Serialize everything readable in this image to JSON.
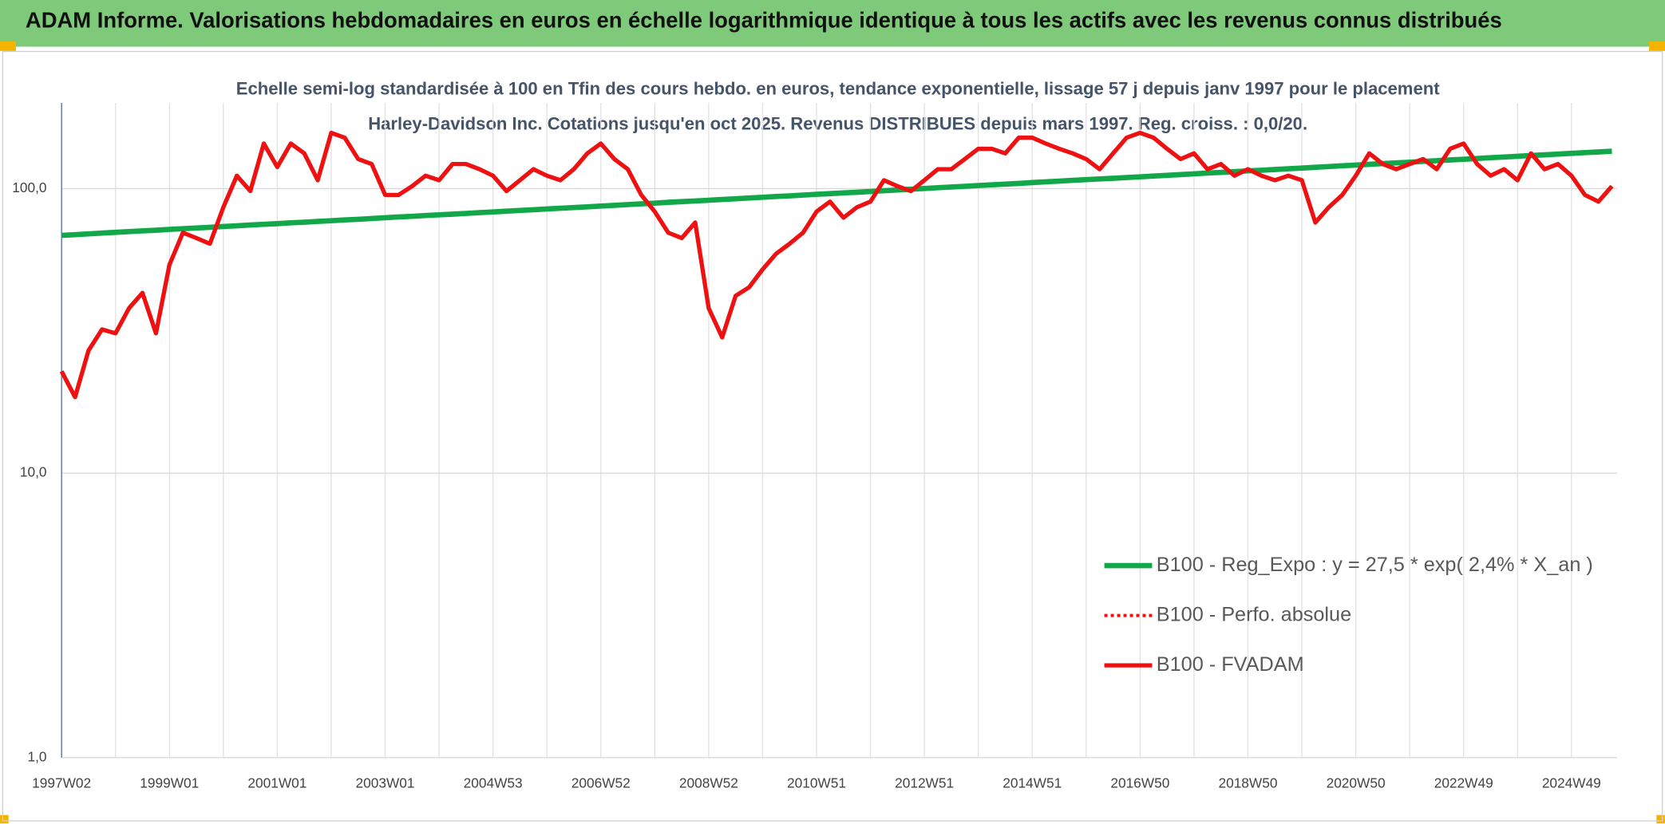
{
  "chart_data": {
    "type": "line",
    "title": "ADAM Informe. Valorisations hebdomadaires en euros en échelle logarithmique identique à tous les actifs avec les revenus connus distribués",
    "subtitle": "Echelle semi-log standardisée à 100 en Tfin des cours hebdo. en euros, tendance exponentielle, lissage 57 j depuis janv 1997 pour le placement Harley-Davidson Inc. Cotations jusqu'en oct 2025. Revenus DISTRIBUES depuis mars 1997. Reg. croiss. : 0,0/20.",
    "log_scale": true,
    "grid": true,
    "legend": "lower right",
    "ylim": [
      1,
      200
    ],
    "yticks": [
      {
        "value": 1,
        "label": "1,0"
      },
      {
        "value": 10,
        "label": "10,0"
      },
      {
        "value": 100,
        "label": "100,0"
      }
    ],
    "categories": [
      "1997W02",
      null,
      null,
      null,
      null,
      null,
      null,
      null,
      "1999W01",
      null,
      null,
      null,
      null,
      null,
      null,
      null,
      "2001W01",
      null,
      null,
      null,
      null,
      null,
      null,
      null,
      "2003W01",
      null,
      null,
      null,
      null,
      null,
      null,
      null,
      "2004W53",
      null,
      null,
      null,
      null,
      null,
      null,
      null,
      "2006W52",
      null,
      null,
      null,
      null,
      null,
      null,
      null,
      "2008W52",
      null,
      null,
      null,
      null,
      null,
      null,
      null,
      "2010W51",
      null,
      null,
      null,
      null,
      null,
      null,
      null,
      "2012W51",
      null,
      null,
      null,
      null,
      null,
      null,
      null,
      "2014W51",
      null,
      null,
      null,
      null,
      null,
      null,
      null,
      "2016W50",
      null,
      null,
      null,
      null,
      null,
      null,
      null,
      "2018W50",
      null,
      null,
      null,
      null,
      null,
      null,
      null,
      "2020W50",
      null,
      null,
      null,
      null,
      null,
      null,
      null,
      "2022W49",
      null,
      null,
      null,
      null,
      null,
      null,
      null,
      "2024W49",
      null,
      null,
      null
    ],
    "series": [
      {
        "name": "B100 - Reg_Expo : y = 27,5 * exp( 2,4% *  X_an )",
        "color": "#12a84a",
        "style": "solid",
        "width": 5,
        "values": [
          68.5,
          68.9,
          69.3,
          69.8,
          70.2,
          70.6,
          71.0,
          71.4,
          71.9,
          72.3,
          72.7,
          73.1,
          73.6,
          74.0,
          74.5,
          74.9,
          75.3,
          75.8,
          76.2,
          76.7,
          77.1,
          77.6,
          78.0,
          78.5,
          79.0,
          79.5,
          79.9,
          80.4,
          80.9,
          81.3,
          81.8,
          82.3,
          82.8,
          83.3,
          83.8,
          84.3,
          84.8,
          85.3,
          85.8,
          86.3,
          86.8,
          87.3,
          87.9,
          88.4,
          88.9,
          89.5,
          90.0,
          90.5,
          91.0,
          91.6,
          92.1,
          92.7,
          93.2,
          93.8,
          94.3,
          94.9,
          95.5,
          96.0,
          96.6,
          97.1,
          97.7,
          98.3,
          98.9,
          99.5,
          100.1,
          100.7,
          101.3,
          101.9,
          102.5,
          103.1,
          103.7,
          104.3,
          105.0,
          105.6,
          106.2,
          106.9,
          107.5,
          108.1,
          108.7,
          109.4,
          110.0,
          110.7,
          111.3,
          112.0,
          112.7,
          113.4,
          114.0,
          114.7,
          115.4,
          116.0,
          116.7,
          117.4,
          118.1,
          118.8,
          119.5,
          120.3,
          121.0,
          121.7,
          122.4,
          123.1,
          123.8,
          124.6,
          125.3,
          126.1,
          126.8,
          127.6,
          128.4,
          129.1,
          129.9,
          130.7,
          131.4,
          132.2,
          133.0,
          133.8,
          134.5,
          135.3
        ]
      },
      {
        "name": "B100 - Perfo. absolue",
        "color": "#ee1111",
        "style": "dotted",
        "width": 3
      },
      {
        "name": "B100 - FVADAM",
        "color": "#ee1111",
        "style": "solid",
        "width": 4,
        "values": [
          22.8,
          18.5,
          27,
          32,
          31,
          38,
          43,
          31,
          54,
          70,
          67,
          64,
          86,
          111,
          98,
          144,
          119,
          144,
          133,
          107,
          157,
          151,
          127,
          122,
          95,
          95,
          102,
          111,
          107,
          122,
          122,
          117,
          111,
          98,
          107,
          117,
          111,
          107,
          117,
          133,
          144,
          127,
          117,
          95,
          83,
          70,
          67,
          76,
          38,
          30,
          42,
          45,
          52,
          59,
          64,
          70,
          83,
          90,
          79,
          86,
          90,
          107,
          102,
          98,
          107,
          117,
          117,
          127,
          138,
          138,
          133,
          151,
          151,
          144,
          138,
          133,
          127,
          117,
          133,
          151,
          157,
          151,
          138,
          127,
          133,
          117,
          122,
          111,
          117,
          111,
          107,
          111,
          107,
          76,
          86,
          95,
          111,
          133,
          122,
          117,
          122,
          127,
          117,
          138,
          144,
          122,
          111,
          117,
          107,
          133,
          117,
          122,
          111,
          95,
          90,
          102
        ]
      }
    ]
  }
}
